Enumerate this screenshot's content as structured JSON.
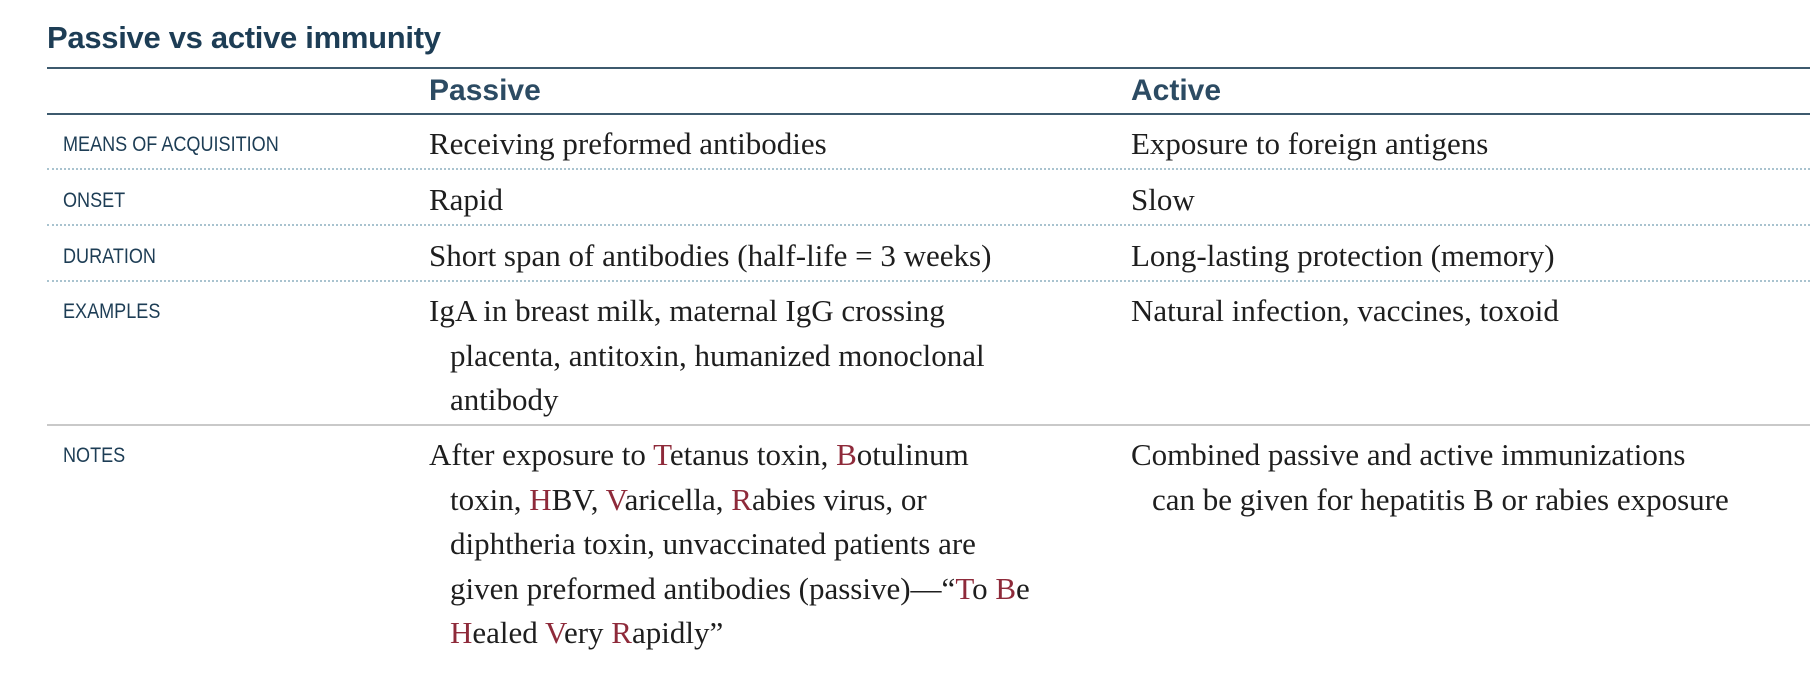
{
  "title": "Passive vs active immunity",
  "columns": {
    "passive": "Passive",
    "active": "Active"
  },
  "rows": [
    {
      "label": "Means of acquisition",
      "passive": [
        "Receiving preformed antibodies"
      ],
      "active": [
        "Exposure to foreign antigens"
      ]
    },
    {
      "label": "Onset",
      "passive": [
        "Rapid"
      ],
      "active": [
        "Slow"
      ]
    },
    {
      "label": "Duration",
      "passive": [
        "Short span of antibodies (half-life = 3 weeks)"
      ],
      "active": [
        "Long-lasting protection (memory)"
      ]
    },
    {
      "label": "Examples",
      "passive": [
        "IgA in breast milk, maternal IgG crossing",
        "placenta, antitoxin, humanized monoclonal",
        "antibody"
      ],
      "active": [
        "Natural infection, vaccines, toxoid"
      ]
    },
    {
      "label": "Notes",
      "passive": [
        [
          {
            "t": "After exposure to "
          },
          {
            "t": "T",
            "hl": true
          },
          {
            "t": "etanus toxin, "
          },
          {
            "t": "B",
            "hl": true
          },
          {
            "t": "otulinum"
          }
        ],
        [
          {
            "t": "toxin, "
          },
          {
            "t": "H",
            "hl": true
          },
          {
            "t": "BV, "
          },
          {
            "t": "V",
            "hl": true
          },
          {
            "t": "aricella, "
          },
          {
            "t": "R",
            "hl": true
          },
          {
            "t": "abies virus, or"
          }
        ],
        [
          {
            "t": "diphtheria toxin, unvaccinated patients are"
          }
        ],
        [
          {
            "t": "given preformed antibodies (passive)—“"
          },
          {
            "t": "T",
            "hl": true
          },
          {
            "t": "o "
          },
          {
            "t": "B",
            "hl": true
          },
          {
            "t": "e"
          }
        ],
        [
          {
            "t": "H",
            "hl": true
          },
          {
            "t": "ealed "
          },
          {
            "t": "V",
            "hl": true
          },
          {
            "t": "ery "
          },
          {
            "t": "R",
            "hl": true
          },
          {
            "t": "apidly”"
          }
        ]
      ],
      "active": [
        "Combined passive and active immunizations",
        "can be given for hepatitis B or rabies exposure"
      ]
    }
  ],
  "colors": {
    "heading": "#1d3d55",
    "mnemonic_highlight": "#8e2a3a",
    "dotted_rule": "#a9c3cf"
  }
}
